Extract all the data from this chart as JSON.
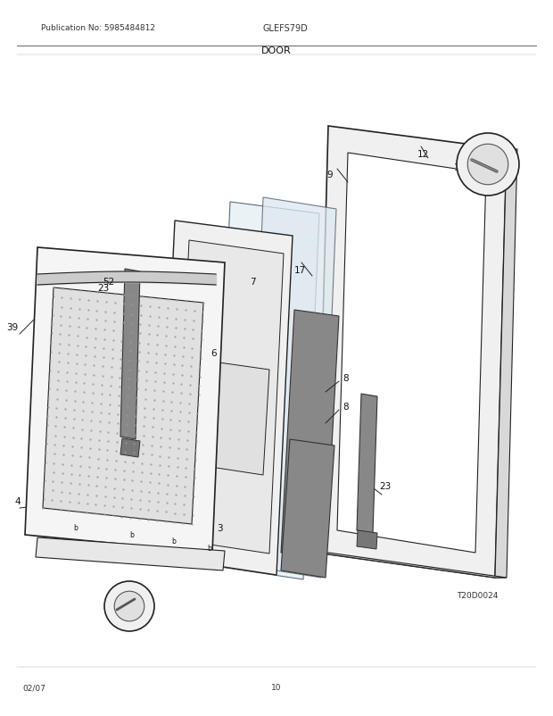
{
  "pub_no": "Publication No: 5985484812",
  "model": "GLEFS79D",
  "section": "DOOR",
  "date": "02/07",
  "page": "10",
  "diagram_id": "T20D0024",
  "bg_color": "#ffffff",
  "line_color": "#222222",
  "light_fill": "#f0f0f0",
  "mid_fill": "#d8d8d8",
  "dark_fill": "#b0b0b0"
}
